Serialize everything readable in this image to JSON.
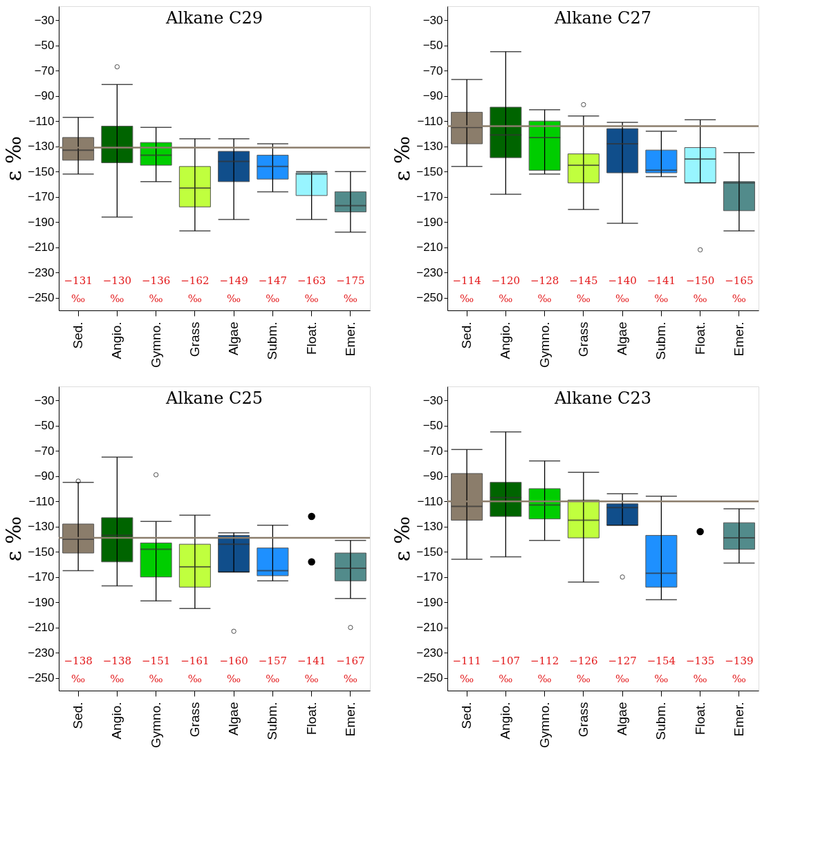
{
  "chart_data": [
    {
      "type": "box",
      "title": "Alkane C29",
      "ylabel": "ε ‰",
      "categories": [
        "Sed.",
        "Angio.",
        "Gymno.",
        "Grass",
        "Algae",
        "Subm.",
        "Float.",
        "Emer."
      ],
      "colors": [
        "#8b7d6b",
        "#006400",
        "#00cd00",
        "#c0ff3e",
        "#104e8b",
        "#1e90ff",
        "#98f5ff",
        "#528b8b"
      ],
      "boxes": [
        {
          "low": -152,
          "q1": -141,
          "median": -133,
          "q3": -123,
          "high": -107
        },
        {
          "low": -186,
          "q1": -143,
          "median": -131,
          "q3": -114,
          "high": -81,
          "outliers": [
            -67
          ]
        },
        {
          "low": -158,
          "q1": -145,
          "median": -137,
          "q3": -127,
          "high": -115
        },
        {
          "low": -197,
          "q1": -178,
          "median": -163,
          "q3": -146,
          "high": -124
        },
        {
          "low": -188,
          "q1": -158,
          "median": -142,
          "q3": -134,
          "high": -124
        },
        {
          "low": -166,
          "q1": -156,
          "median": -146,
          "q3": -137,
          "high": -128
        },
        {
          "low": -188,
          "q1": -169,
          "median": -152,
          "q3": -151,
          "high": -150
        },
        {
          "low": -198,
          "q1": -182,
          "median": -177,
          "q3": -166,
          "high": -150
        }
      ],
      "ylim": [
        -260,
        -19
      ],
      "yticks": [
        -30,
        -50,
        -70,
        -90,
        -110,
        -130,
        -150,
        -170,
        -190,
        -210,
        -230,
        -250
      ],
      "ref_lines": [
        {
          "axis": "y",
          "value": -131,
          "color": "#8b7d6b"
        }
      ],
      "annotations": [
        "−131 ‰",
        "−130 ‰",
        "−136 ‰",
        "−162 ‰",
        "−149 ‰",
        "−147 ‰",
        "−163 ‰",
        "−175 ‰"
      ]
    },
    {
      "type": "box",
      "title": "Alkane C27",
      "ylabel": "ε ‰",
      "categories": [
        "Sed.",
        "Angio.",
        "Gymno.",
        "Grass",
        "Algae",
        "Subm.",
        "Float.",
        "Emer."
      ],
      "colors": [
        "#8b7d6b",
        "#006400",
        "#00cd00",
        "#c0ff3e",
        "#104e8b",
        "#1e90ff",
        "#98f5ff",
        "#528b8b"
      ],
      "boxes": [
        {
          "low": -146,
          "q1": -128,
          "median": -115,
          "q3": -103,
          "high": -77
        },
        {
          "low": -168,
          "q1": -139,
          "median": -121,
          "q3": -99,
          "high": -55
        },
        {
          "low": -152,
          "q1": -149,
          "median": -123,
          "q3": -110,
          "high": -101
        },
        {
          "low": -180,
          "q1": -159,
          "median": -145,
          "q3": -136,
          "high": -106,
          "outliers": [
            -97
          ]
        },
        {
          "low": -191,
          "q1": -151,
          "median": -128,
          "q3": -116,
          "high": -111
        },
        {
          "low": -154,
          "q1": -151,
          "median": -149,
          "q3": -133,
          "high": -118
        },
        {
          "low": -159,
          "q1": -159,
          "median": -140,
          "q3": -131,
          "high": -109,
          "outliers": [
            -212
          ]
        },
        {
          "low": -197,
          "q1": -181,
          "median": -159,
          "q3": -158,
          "high": -135
        }
      ],
      "ylim": [
        -260,
        -19
      ],
      "yticks": [
        -30,
        -50,
        -70,
        -90,
        -110,
        -130,
        -150,
        -170,
        -190,
        -210,
        -230,
        -250
      ],
      "ref_lines": [
        {
          "axis": "y",
          "value": -114,
          "color": "#8b7d6b"
        }
      ],
      "annotations": [
        "−114 ‰",
        "−120 ‰",
        "−128 ‰",
        "−145 ‰",
        "−140 ‰",
        "−141 ‰",
        "−150 ‰",
        "−165 ‰"
      ]
    },
    {
      "type": "box",
      "title": "Alkane C25",
      "ylabel": "ε ‰",
      "categories": [
        "Sed.",
        "Angio.",
        "Gymno.",
        "Grass",
        "Algae",
        "Subm.",
        "Float.",
        "Emer."
      ],
      "colors": [
        "#8b7d6b",
        "#006400",
        "#00cd00",
        "#c0ff3e",
        "#104e8b",
        "#1e90ff",
        "#98f5ff",
        "#528b8b"
      ],
      "boxes": [
        {
          "low": -165,
          "q1": -151,
          "median": -140,
          "q3": -128,
          "high": -95,
          "outliers": [
            -94
          ]
        },
        {
          "low": -177,
          "q1": -158,
          "median": -137,
          "q3": -123,
          "high": -75
        },
        {
          "low": -189,
          "q1": -170,
          "median": -148,
          "q3": -143,
          "high": -126,
          "outliers": [
            -89
          ]
        },
        {
          "low": -195,
          "q1": -178,
          "median": -162,
          "q3": -144,
          "high": -121
        },
        {
          "low": -166,
          "q1": -166,
          "median": -144,
          "q3": -137,
          "high": -135,
          "outliers": [
            -213
          ]
        },
        {
          "low": -173,
          "q1": -169,
          "median": -165,
          "q3": -147,
          "high": -129
        },
        null,
        {
          "low": -187,
          "q1": -173,
          "median": -163,
          "q3": -151,
          "high": -141,
          "outliers": [
            -210
          ]
        }
      ],
      "series": [
        {
          "type": "scatter",
          "x": [
            "Float.",
            "Float."
          ],
          "values": [
            -122,
            -158
          ],
          "color": "#000000"
        }
      ],
      "ylim": [
        -260,
        -19
      ],
      "yticks": [
        -30,
        -50,
        -70,
        -90,
        -110,
        -130,
        -150,
        -170,
        -190,
        -210,
        -230,
        -250
      ],
      "ref_lines": [
        {
          "axis": "y",
          "value": -139,
          "color": "#8b7d6b"
        }
      ],
      "annotations": [
        "−138 ‰",
        "−138 ‰",
        "−151 ‰",
        "−161 ‰",
        "−160 ‰",
        "−157 ‰",
        "−141 ‰",
        "−167 ‰"
      ]
    },
    {
      "type": "box",
      "title": "Alkane C23",
      "ylabel": "ε ‰",
      "categories": [
        "Sed.",
        "Angio.",
        "Gymno.",
        "Grass",
        "Algae",
        "Subm.",
        "Float.",
        "Emer."
      ],
      "colors": [
        "#8b7d6b",
        "#006400",
        "#00cd00",
        "#c0ff3e",
        "#104e8b",
        "#1e90ff",
        "#98f5ff",
        "#528b8b"
      ],
      "boxes": [
        {
          "low": -156,
          "q1": -125,
          "median": -114,
          "q3": -88,
          "high": -69
        },
        {
          "low": -154,
          "q1": -122,
          "median": -107,
          "q3": -95,
          "high": -55
        },
        {
          "low": -141,
          "q1": -124,
          "median": -113,
          "q3": -100,
          "high": -78
        },
        {
          "low": -174,
          "q1": -139,
          "median": -125,
          "q3": -109,
          "high": -87
        },
        {
          "low": -129,
          "q1": -129,
          "median": -115,
          "q3": -112,
          "high": -104,
          "outliers": [
            -170
          ]
        },
        {
          "low": -188,
          "q1": -178,
          "median": -167,
          "q3": -137,
          "high": -106
        },
        null,
        {
          "low": -159,
          "q1": -148,
          "median": -139,
          "q3": -127,
          "high": -116
        }
      ],
      "series": [
        {
          "type": "scatter",
          "x": [
            "Float."
          ],
          "values": [
            -134
          ],
          "color": "#000000"
        }
      ],
      "ylim": [
        -260,
        -19
      ],
      "yticks": [
        -30,
        -50,
        -70,
        -90,
        -110,
        -130,
        -150,
        -170,
        -190,
        -210,
        -230,
        -250
      ],
      "ref_lines": [
        {
          "axis": "y",
          "value": -110,
          "color": "#8b7d6b"
        }
      ],
      "annotations": [
        "−111 ‰",
        "−107 ‰",
        "−112 ‰",
        "−126 ‰",
        "−127 ‰",
        "−154 ‰",
        "−135 ‰",
        "−139 ‰"
      ]
    }
  ]
}
